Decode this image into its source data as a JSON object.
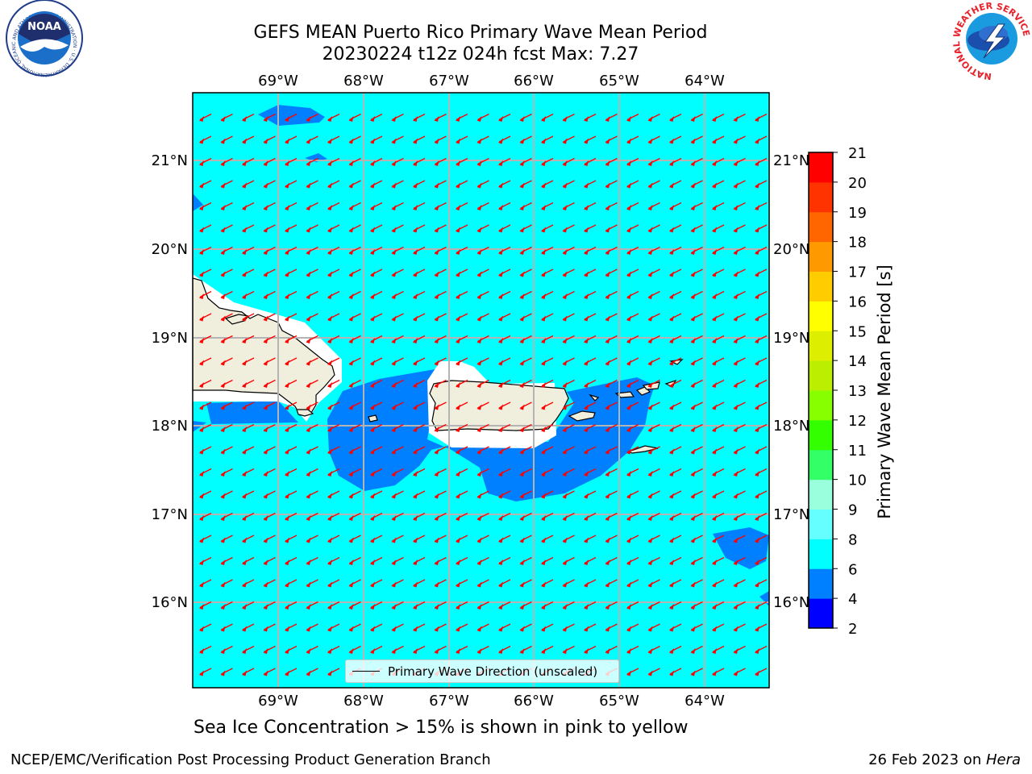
{
  "title_line1": "GEFS MEAN Puerto Rico Primary Wave Mean Period",
  "title_line2": "20230224 t12z 024h fcst   Max: 7.27",
  "map": {
    "lon_labels": [
      "69°W",
      "68°W",
      "67°W",
      "66°W",
      "65°W",
      "64°W"
    ],
    "lat_labels": [
      "21°N",
      "20°N",
      "19°N",
      "18°N",
      "17°N",
      "16°N"
    ],
    "legend_label": "Primary Wave Direction (unscaled)",
    "ocean_color": "#00ffff",
    "low_period_color": "#0080ff",
    "land_color": "#f0eedc",
    "arrow_color": "#ff0000"
  },
  "colorbar": {
    "title": "Primary Wave Mean Period [s]",
    "ticks": [
      "2",
      "4",
      "6",
      "8",
      "9",
      "10",
      "11",
      "12",
      "13",
      "14",
      "15",
      "16",
      "17",
      "18",
      "19",
      "20",
      "21"
    ],
    "colors": [
      "#0000ff",
      "#0080ff",
      "#00ffff",
      "#66ffff",
      "#99ffdd",
      "#33ff66",
      "#33ff00",
      "#88ff00",
      "#bbee00",
      "#ddee00",
      "#ffff00",
      "#ffcc00",
      "#ff9900",
      "#ff6600",
      "#ff3300",
      "#ff0000"
    ]
  },
  "caption": "Sea Ice Concentration > 15% is shown in pink to yellow",
  "footer": {
    "left": "NCEP/EMC/Verification Post Processing Product Generation Branch",
    "date": "26 Feb 2023 on ",
    "host": "Hera"
  },
  "logos": {
    "noaa_text": "NOAA",
    "noaa_ring": "NATIONAL OCEANIC AND ATMOSPHERIC ADMINISTRATION · U.S. DEPARTMENT OF COMMERCE ·",
    "nws_ring": "NATIONAL WEATHER SERVICE"
  }
}
